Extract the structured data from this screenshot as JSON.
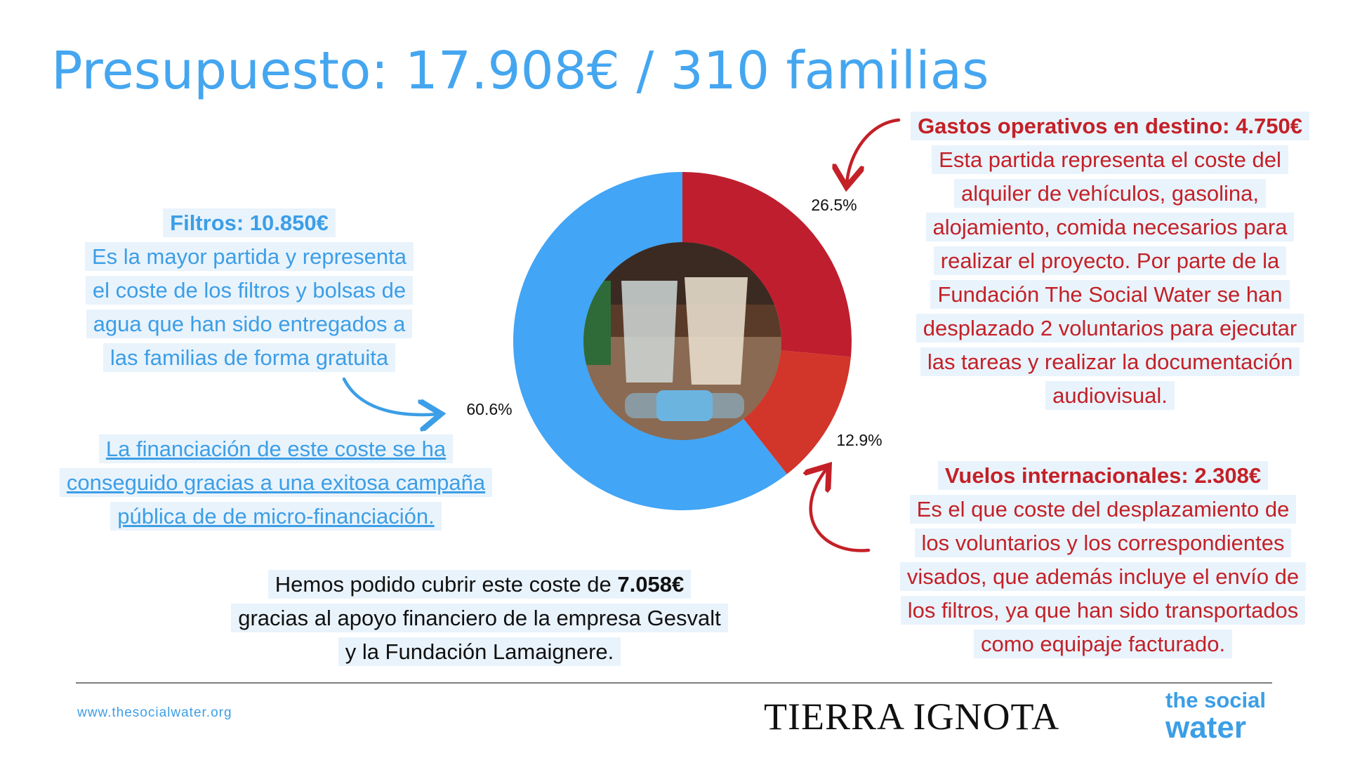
{
  "header": {
    "title": "Presupuesto: 17.908€ / 310 familias"
  },
  "chart_data": {
    "type": "donut",
    "values": [
      26.5,
      12.9,
      60.6
    ],
    "value_labels": [
      "26.5%",
      "12.9%",
      "60.6%"
    ],
    "colors": [
      "#bf1e2e",
      "#d2352a",
      "#42a5f5"
    ]
  },
  "blocks": {
    "filtros": {
      "heading": "Filtros: 10.850€",
      "lines": [
        "Es la mayor partida y representa",
        "el coste de los filtros y bolsas de",
        "agua que han sido entregados a",
        "las familias de forma gratuita"
      ]
    },
    "financiacion": {
      "lines": [
        "La financiación de este coste se ha",
        "conseguido gracias a una exitosa campaña",
        "pública de de micro-financiación."
      ]
    },
    "cubierto": {
      "text": "Hemos podido cubrir este coste de",
      "amount": "7.058€",
      "lines": [
        "gracias al apoyo financiero de la empresa Gesvalt",
        "y la Fundación Lamaignere."
      ]
    },
    "gastos": {
      "heading": "Gastos operativos en destino: 4.750€",
      "lines": [
        "Esta partida representa el coste del",
        "alquiler de vehículos, gasolina,",
        "alojamiento, comida necesarios para",
        "realizar el proyecto. Por parte de la",
        "Fundación The Social Water se han",
        "desplazado 2 voluntarios para ejecutar",
        "las tareas y realizar la documentación",
        "audiovisual."
      ]
    },
    "vuelos": {
      "heading": "Vuelos internacionales: 2.308€",
      "lines": [
        "Es el que coste del desplazamiento de",
        "los voluntarios y los correspondientes",
        "visados, que además incluye el envío de",
        "los filtros, ya que han sido transportados",
        "como equipaje facturado."
      ]
    }
  },
  "footer": {
    "url": "www.thesocialwater.org",
    "partner_logo": "TIERRA IGNOTA",
    "logo_top": "the social",
    "logo_bottom": "water"
  }
}
